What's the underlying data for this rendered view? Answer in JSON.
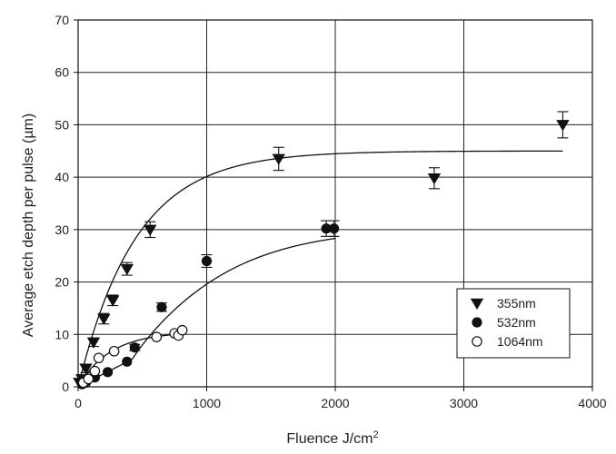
{
  "chart_data": {
    "type": "scatter",
    "title": "",
    "xlabel": "Fluence J/cm",
    "xlabel_superscript": "2",
    "ylabel": "Average etch depth per pulse (µm)",
    "xlim": [
      0,
      4000
    ],
    "ylim": [
      0,
      70
    ],
    "xticks": [
      "0",
      "1000",
      "2000",
      "3000",
      "4000"
    ],
    "yticks": [
      "0",
      "10",
      "20",
      "30",
      "40",
      "50",
      "60",
      "70"
    ],
    "grid": true,
    "legend_position": "bottom-right",
    "series": [
      {
        "name": "355nm",
        "marker": "filled-triangle-down",
        "color": "#111111",
        "points": [
          {
            "x": 10,
            "y": 0.8
          },
          {
            "x": 30,
            "y": 1.5
          },
          {
            "x": 60,
            "y": 3.5,
            "err": 0.8
          },
          {
            "x": 120,
            "y": 8.5,
            "err": 0.8
          },
          {
            "x": 200,
            "y": 13.0,
            "err": 1.0
          },
          {
            "x": 270,
            "y": 16.5,
            "err": 1.0
          },
          {
            "x": 380,
            "y": 22.5,
            "err": 1.2
          },
          {
            "x": 560,
            "y": 30.0,
            "err": 1.5
          },
          {
            "x": 1560,
            "y": 43.5,
            "err": 2.2
          },
          {
            "x": 2770,
            "y": 39.8,
            "err": 2.0
          },
          {
            "x": 3770,
            "y": 50.0,
            "err": 2.5
          }
        ]
      },
      {
        "name": "532nm",
        "marker": "filled-circle",
        "color": "#111111",
        "points": [
          {
            "x": 30,
            "y": 0.5
          },
          {
            "x": 60,
            "y": 0.8
          },
          {
            "x": 130,
            "y": 1.8
          },
          {
            "x": 230,
            "y": 2.8
          },
          {
            "x": 380,
            "y": 4.8
          },
          {
            "x": 440,
            "y": 7.5,
            "err": 0.6
          },
          {
            "x": 650,
            "y": 15.2,
            "err": 0.8
          },
          {
            "x": 1000,
            "y": 24.0,
            "err": 1.2
          },
          {
            "x": 1930,
            "y": 30.2,
            "err": 1.5
          },
          {
            "x": 1990,
            "y": 30.2,
            "err": 1.5
          }
        ]
      },
      {
        "name": "1064nm",
        "marker": "open-circle",
        "color": "#111111",
        "points": [
          {
            "x": 40,
            "y": 0.8
          },
          {
            "x": 80,
            "y": 1.5
          },
          {
            "x": 130,
            "y": 3.0
          },
          {
            "x": 160,
            "y": 5.5
          },
          {
            "x": 280,
            "y": 6.8
          },
          {
            "x": 610,
            "y": 9.5
          },
          {
            "x": 750,
            "y": 10.2
          },
          {
            "x": 780,
            "y": 9.8
          },
          {
            "x": 810,
            "y": 10.8
          }
        ]
      }
    ],
    "fits": [
      {
        "series": "355nm",
        "model": "saturating-exponential",
        "amplitude": 45,
        "scale": 450,
        "x_range": [
          0,
          3770
        ]
      },
      {
        "series": "532nm",
        "model": "delayed-saturating-exponential",
        "amplitude": 30.5,
        "scale": 600,
        "onset": 420,
        "x_range": [
          0,
          2000
        ]
      },
      {
        "series": "1064nm",
        "model": "saturating-exponential",
        "amplitude": 10.5,
        "scale": 250,
        "x_range": [
          0,
          810
        ]
      }
    ]
  }
}
